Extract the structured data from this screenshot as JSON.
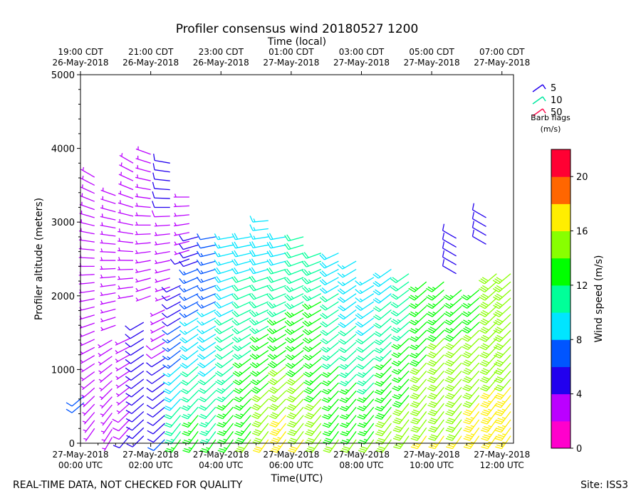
{
  "chart_data": {
    "type": "wind_barb_profile",
    "title": "Profiler consensus wind 20180527 1200",
    "xlabel": "Time(UTC)",
    "xlabel_top": "Time (local)",
    "ylabel": "Profiler altitude (meters)",
    "ylim": [
      0,
      5000
    ],
    "xlim_hours": [
      0,
      12.33
    ],
    "y_ticks": [
      0,
      1000,
      2000,
      3000,
      4000,
      5000
    ],
    "x_ticks_bottom": [
      {
        "h": 0,
        "line1": "27-May-2018",
        "line2": "00:00 UTC"
      },
      {
        "h": 2,
        "line1": "27-May-2018",
        "line2": "02:00 UTC"
      },
      {
        "h": 4,
        "line1": "27-May-2018",
        "line2": "04:00 UTC"
      },
      {
        "h": 6,
        "line1": "27-May-2018",
        "line2": "06:00 UTC"
      },
      {
        "h": 8,
        "line1": "27-May-2018",
        "line2": "08:00 UTC"
      },
      {
        "h": 10,
        "line1": "27-May-2018",
        "line2": "10:00 UTC"
      },
      {
        "h": 12,
        "line1": "27-May-2018",
        "line2": "12:00 UTC"
      }
    ],
    "x_ticks_top": [
      {
        "h": 0,
        "line1": "19:00 CDT",
        "line2": "26-May-2018"
      },
      {
        "h": 2,
        "line1": "21:00 CDT",
        "line2": "26-May-2018"
      },
      {
        "h": 4,
        "line1": "23:00 CDT",
        "line2": "26-May-2018"
      },
      {
        "h": 6,
        "line1": "01:00 CDT",
        "line2": "27-May-2018"
      },
      {
        "h": 8,
        "line1": "03:00 CDT",
        "line2": "27-May-2018"
      },
      {
        "h": 10,
        "line1": "05:00 CDT",
        "line2": "27-May-2018"
      },
      {
        "h": 12,
        "line1": "07:00 CDT",
        "line2": "27-May-2018"
      }
    ],
    "barb_legend": {
      "title": "Barb flags",
      "unit": "(m/s)",
      "items": [
        {
          "value": "5",
          "color": "#2200ee"
        },
        {
          "value": "10",
          "color": "#00e8a0"
        },
        {
          "value": "50",
          "color": "#ff1050"
        }
      ]
    },
    "colorbar": {
      "label": "Wind speed (m/s)",
      "min": 0,
      "max": 22,
      "step": 2,
      "ticks": [
        0,
        4,
        8,
        12,
        16,
        20
      ],
      "colors": [
        "#ff00cc",
        "#bb00ff",
        "#2200ee",
        "#0055ff",
        "#00e5ff",
        "#00ff99",
        "#00ff00",
        "#88ff00",
        "#ffee00",
        "#ff6600",
        "#ff0033"
      ]
    },
    "profiles": [
      {
        "t": 0.1,
        "alt_start": 550,
        "alt_end": 700,
        "dz": 90,
        "spd_low": 6,
        "spd_high": 6,
        "dir_low": 230,
        "dir_high": 230
      },
      {
        "t": 0.4,
        "alt_start": 200,
        "alt_end": 3700,
        "dz": 110,
        "spd_low": 3,
        "spd_high": 2,
        "dir_low": 215,
        "dir_high": 300
      },
      {
        "t": 0.9,
        "alt_start": 80,
        "alt_end": 1400,
        "dz": 110,
        "spd_low": 3,
        "spd_high": 3,
        "dir_low": 210,
        "dir_high": 240
      },
      {
        "t": 1.0,
        "alt_start": 1600,
        "alt_end": 3400,
        "dz": 110,
        "spd_low": 2,
        "spd_high": 2,
        "dir_low": 250,
        "dir_high": 290
      },
      {
        "t": 1.4,
        "alt_start": 100,
        "alt_end": 1500,
        "dz": 110,
        "spd_low": 4,
        "spd_high": 3,
        "dir_low": 220,
        "dir_high": 245
      },
      {
        "t": 1.5,
        "alt_start": 2000,
        "alt_end": 3800,
        "dz": 120,
        "spd_low": 2,
        "spd_high": 2,
        "dir_low": 260,
        "dir_high": 300
      },
      {
        "t": 1.8,
        "alt_start": 100,
        "alt_end": 1700,
        "dz": 110,
        "spd_low": 5,
        "spd_high": 4,
        "dir_low": 225,
        "dir_high": 240
      },
      {
        "t": 2.0,
        "alt_start": 2000,
        "alt_end": 4000,
        "dz": 120,
        "spd_low": 2,
        "spd_high": 2,
        "dir_low": 250,
        "dir_high": 290
      },
      {
        "t": 2.4,
        "alt_start": 50,
        "alt_end": 1900,
        "dz": 110,
        "spd_low": 6,
        "spd_high": 3,
        "dir_low": 225,
        "dir_high": 245
      },
      {
        "t": 2.55,
        "alt_start": 2000,
        "alt_end": 3900,
        "dz": 120,
        "spd_low": 2,
        "spd_high": 5,
        "dir_low": 250,
        "dir_high": 280
      },
      {
        "t": 2.85,
        "alt_start": 50,
        "alt_end": 2200,
        "dz": 110,
        "spd_low": 12,
        "spd_high": 4,
        "dir_low": 215,
        "dir_high": 245
      },
      {
        "t": 3.1,
        "alt_start": 2500,
        "alt_end": 3400,
        "dz": 120,
        "spd_low": 4,
        "spd_high": 2,
        "dir_low": 250,
        "dir_high": 270
      },
      {
        "t": 3.35,
        "alt_start": 50,
        "alt_end": 2800,
        "dz": 110,
        "spd_low": 13,
        "spd_high": 5,
        "dir_low": 215,
        "dir_high": 255
      },
      {
        "t": 3.85,
        "alt_start": 50,
        "alt_end": 2850,
        "dz": 110,
        "spd_low": 12,
        "spd_high": 6,
        "dir_low": 215,
        "dir_high": 260
      },
      {
        "t": 4.35,
        "alt_start": 50,
        "alt_end": 2900,
        "dz": 110,
        "spd_low": 13,
        "spd_high": 8,
        "dir_low": 215,
        "dir_high": 260
      },
      {
        "t": 4.85,
        "alt_start": 50,
        "alt_end": 2800,
        "dz": 110,
        "spd_low": 14,
        "spd_high": 9,
        "dir_low": 215,
        "dir_high": 260
      },
      {
        "t": 5.35,
        "alt_start": 50,
        "alt_end": 3100,
        "dz": 110,
        "spd_low": 16,
        "spd_high": 8,
        "dir_low": 215,
        "dir_high": 265
      },
      {
        "t": 5.85,
        "alt_start": 50,
        "alt_end": 2850,
        "dz": 110,
        "spd_low": 17,
        "spd_high": 9,
        "dir_low": 215,
        "dir_high": 260
      },
      {
        "t": 6.35,
        "alt_start": 50,
        "alt_end": 2850,
        "dz": 110,
        "spd_low": 16,
        "spd_high": 10,
        "dir_low": 215,
        "dir_high": 255
      },
      {
        "t": 6.85,
        "alt_start": 50,
        "alt_end": 2650,
        "dz": 110,
        "spd_low": 15,
        "spd_high": 11,
        "dir_low": 215,
        "dir_high": 250
      },
      {
        "t": 7.35,
        "alt_start": 50,
        "alt_end": 2600,
        "dz": 110,
        "spd_low": 14,
        "spd_high": 9,
        "dir_low": 215,
        "dir_high": 245
      },
      {
        "t": 7.85,
        "alt_start": 50,
        "alt_end": 2500,
        "dz": 110,
        "spd_low": 14,
        "spd_high": 8,
        "dir_low": 215,
        "dir_high": 240
      },
      {
        "t": 8.35,
        "alt_start": 50,
        "alt_end": 2300,
        "dz": 110,
        "spd_low": 14,
        "spd_high": 8,
        "dir_low": 215,
        "dir_high": 240
      },
      {
        "t": 8.85,
        "alt_start": 50,
        "alt_end": 2400,
        "dz": 110,
        "spd_low": 15,
        "spd_high": 9,
        "dir_low": 215,
        "dir_high": 235
      },
      {
        "t": 9.35,
        "alt_start": 100,
        "alt_end": 2300,
        "dz": 110,
        "spd_low": 15,
        "spd_high": 10,
        "dir_low": 215,
        "dir_high": 235
      },
      {
        "t": 9.85,
        "alt_start": 100,
        "alt_end": 2250,
        "dz": 110,
        "spd_low": 16,
        "spd_high": 12,
        "dir_low": 215,
        "dir_high": 230
      },
      {
        "t": 10.35,
        "alt_start": 100,
        "alt_end": 2200,
        "dz": 110,
        "spd_low": 16,
        "spd_high": 13,
        "dir_low": 215,
        "dir_high": 230
      },
      {
        "t": 10.7,
        "alt_start": 2300,
        "alt_end": 2800,
        "dz": 120,
        "spd_low": 5,
        "spd_high": 5,
        "dir_low": 300,
        "dir_high": 300
      },
      {
        "t": 10.85,
        "alt_start": 100,
        "alt_end": 2100,
        "dz": 110,
        "spd_low": 16,
        "spd_high": 13,
        "dir_low": 215,
        "dir_high": 230
      },
      {
        "t": 11.35,
        "alt_start": 100,
        "alt_end": 2100,
        "dz": 110,
        "spd_low": 17,
        "spd_high": 13,
        "dir_low": 215,
        "dir_high": 230
      },
      {
        "t": 11.55,
        "alt_start": 2700,
        "alt_end": 3150,
        "dz": 120,
        "spd_low": 5,
        "spd_high": 5,
        "dir_low": 300,
        "dir_high": 300
      },
      {
        "t": 11.85,
        "alt_start": 100,
        "alt_end": 2400,
        "dz": 110,
        "spd_low": 17,
        "spd_high": 14,
        "dir_low": 215,
        "dir_high": 230
      },
      {
        "t": 12.25,
        "alt_start": 100,
        "alt_end": 2400,
        "dz": 110,
        "spd_low": 17,
        "spd_high": 14,
        "dir_low": 215,
        "dir_high": 230
      }
    ]
  },
  "footer": {
    "left": "REAL-TIME DATA, NOT CHECKED FOR QUALITY",
    "right": "Site: ISS3"
  }
}
